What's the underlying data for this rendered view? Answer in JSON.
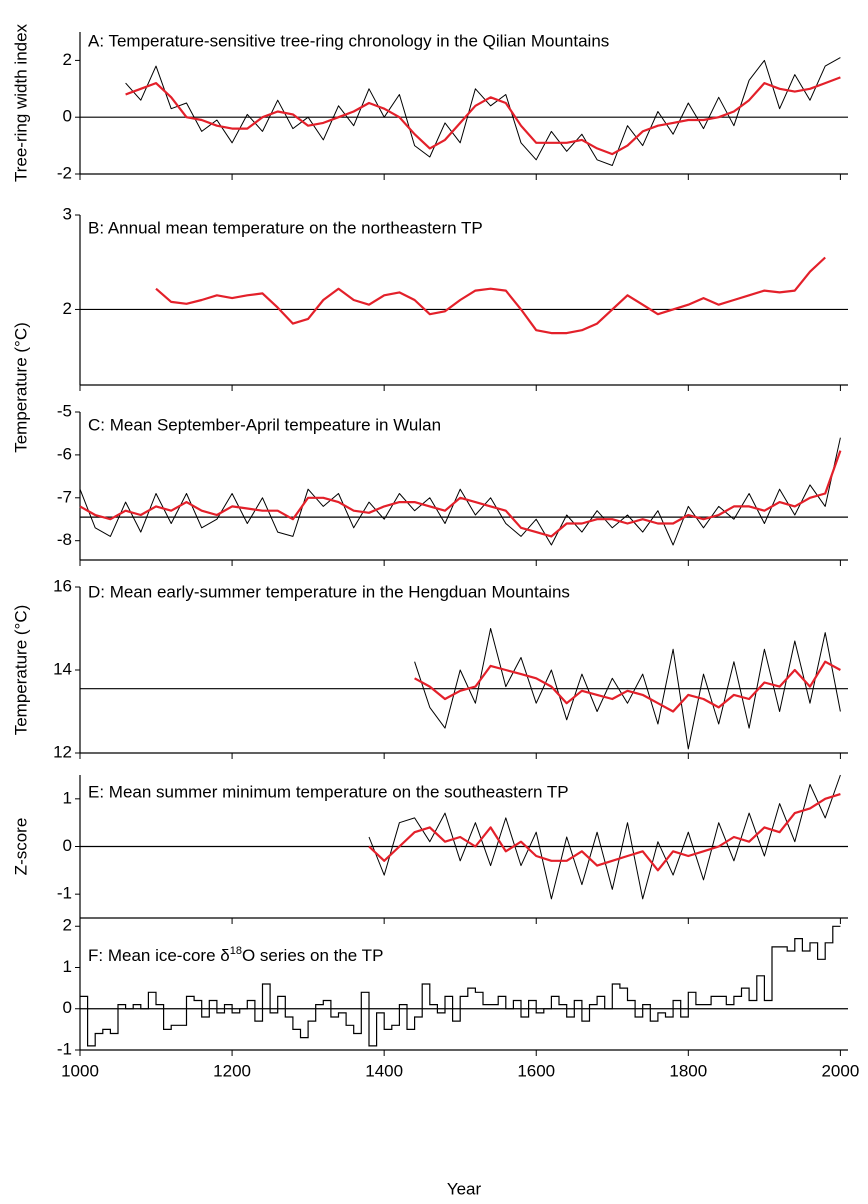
{
  "chart_data": [
    {
      "type": "line",
      "title": "A: Temperature-sensitive tree-ring chronology in the Qilian Mountains",
      "y_label": "Tree-ring width index",
      "x": [
        1060,
        1080,
        1100,
        1120,
        1140,
        1160,
        1180,
        1200,
        1220,
        1240,
        1260,
        1280,
        1300,
        1320,
        1340,
        1360,
        1380,
        1400,
        1420,
        1440,
        1460,
        1480,
        1500,
        1520,
        1540,
        1560,
        1580,
        1600,
        1620,
        1640,
        1660,
        1680,
        1700,
        1720,
        1740,
        1760,
        1780,
        1800,
        1820,
        1840,
        1860,
        1880,
        1900,
        1920,
        1940,
        1960,
        1980,
        2000
      ],
      "series": [
        {
          "color": "#000000",
          "values": [
            1.2,
            0.6,
            1.8,
            0.3,
            0.5,
            -0.5,
            -0.1,
            -0.9,
            0.1,
            -0.5,
            0.6,
            -0.4,
            0.0,
            -0.8,
            0.4,
            -0.3,
            1.0,
            0.0,
            0.8,
            -1.0,
            -1.4,
            -0.2,
            -0.9,
            1.0,
            0.4,
            0.8,
            -0.9,
            -1.5,
            -0.5,
            -1.2,
            -0.6,
            -1.5,
            -1.7,
            -0.3,
            -1.0,
            0.2,
            -0.6,
            0.5,
            -0.4,
            0.7,
            -0.3,
            1.3,
            2.0,
            0.3,
            1.5,
            0.6,
            1.8,
            2.1
          ]
        },
        {
          "color": "#e3202a",
          "values": [
            0.8,
            1.0,
            1.2,
            0.7,
            0.0,
            -0.1,
            -0.3,
            -0.4,
            -0.4,
            0.0,
            0.2,
            0.1,
            -0.3,
            -0.2,
            0.0,
            0.2,
            0.5,
            0.3,
            0.0,
            -0.6,
            -1.1,
            -0.8,
            -0.2,
            0.4,
            0.7,
            0.5,
            -0.3,
            -0.9,
            -0.9,
            -0.9,
            -0.8,
            -1.1,
            -1.3,
            -1.0,
            -0.5,
            -0.3,
            -0.2,
            -0.1,
            -0.1,
            0.0,
            0.2,
            0.6,
            1.2,
            1.0,
            0.9,
            1.0,
            1.2,
            1.4
          ]
        }
      ],
      "hline": 0,
      "xlim": [
        1000,
        2010
      ],
      "ylim": [
        -2,
        3
      ],
      "yticks": [
        -2,
        0,
        2
      ]
    },
    {
      "type": "line",
      "title": "B: Annual mean temperature on the northeastern TP",
      "y_label": "Temperature (°C)",
      "x": [
        1100,
        1120,
        1140,
        1160,
        1180,
        1200,
        1220,
        1240,
        1260,
        1280,
        1300,
        1320,
        1340,
        1360,
        1380,
        1400,
        1420,
        1440,
        1460,
        1480,
        1500,
        1520,
        1540,
        1560,
        1580,
        1600,
        1620,
        1640,
        1660,
        1680,
        1700,
        1720,
        1740,
        1760,
        1780,
        1800,
        1820,
        1840,
        1860,
        1880,
        1900,
        1920,
        1940,
        1960,
        1980
      ],
      "series": [
        {
          "color": "#e3202a",
          "values": [
            2.22,
            2.08,
            2.06,
            2.1,
            2.15,
            2.12,
            2.15,
            2.17,
            2.02,
            1.85,
            1.9,
            2.1,
            2.22,
            2.1,
            2.05,
            2.15,
            2.18,
            2.1,
            1.95,
            1.98,
            2.1,
            2.2,
            2.22,
            2.2,
            2.0,
            1.78,
            1.75,
            1.75,
            1.78,
            1.85,
            2.0,
            2.15,
            2.05,
            1.95,
            2.0,
            2.05,
            2.12,
            2.05,
            2.1,
            2.15,
            2.2,
            2.18,
            2.2,
            2.4,
            2.55
          ]
        }
      ],
      "hline": 2,
      "xlim": [
        1000,
        2010
      ],
      "ylim": [
        1.2,
        3
      ],
      "yticks": [
        2,
        3
      ]
    },
    {
      "type": "line",
      "title": "C: Mean September-April tempeature in Wulan",
      "x": [
        1000,
        1020,
        1040,
        1060,
        1080,
        1100,
        1120,
        1140,
        1160,
        1180,
        1200,
        1220,
        1240,
        1260,
        1280,
        1300,
        1320,
        1340,
        1360,
        1380,
        1400,
        1420,
        1440,
        1460,
        1480,
        1500,
        1520,
        1540,
        1560,
        1580,
        1600,
        1620,
        1640,
        1660,
        1680,
        1700,
        1720,
        1740,
        1760,
        1780,
        1800,
        1820,
        1840,
        1860,
        1880,
        1900,
        1920,
        1940,
        1960,
        1980,
        2000
      ],
      "series": [
        {
          "color": "#000000",
          "values": [
            -6.8,
            -7.7,
            -7.9,
            -7.1,
            -7.8,
            -6.9,
            -7.6,
            -6.9,
            -7.7,
            -7.5,
            -6.9,
            -7.6,
            -7.0,
            -7.8,
            -7.9,
            -6.8,
            -7.2,
            -6.9,
            -7.7,
            -7.1,
            -7.5,
            -6.9,
            -7.3,
            -7.0,
            -7.6,
            -6.8,
            -7.4,
            -7.0,
            -7.6,
            -7.9,
            -7.5,
            -8.1,
            -7.4,
            -7.8,
            -7.3,
            -7.7,
            -7.4,
            -7.8,
            -7.3,
            -8.1,
            -7.2,
            -7.7,
            -7.2,
            -7.5,
            -6.9,
            -7.6,
            -6.8,
            -7.4,
            -6.7,
            -7.2,
            -5.6
          ]
        },
        {
          "color": "#e3202a",
          "values": [
            -7.2,
            -7.4,
            -7.5,
            -7.3,
            -7.4,
            -7.2,
            -7.3,
            -7.1,
            -7.3,
            -7.4,
            -7.2,
            -7.25,
            -7.3,
            -7.3,
            -7.5,
            -7.0,
            -7.0,
            -7.1,
            -7.3,
            -7.35,
            -7.2,
            -7.1,
            -7.1,
            -7.2,
            -7.3,
            -7.0,
            -7.1,
            -7.2,
            -7.3,
            -7.7,
            -7.8,
            -7.9,
            -7.6,
            -7.6,
            -7.5,
            -7.5,
            -7.6,
            -7.5,
            -7.6,
            -7.6,
            -7.4,
            -7.5,
            -7.4,
            -7.2,
            -7.2,
            -7.3,
            -7.1,
            -7.2,
            -7.0,
            -6.9,
            -5.9
          ]
        }
      ],
      "hline": -7.45,
      "xlim": [
        1000,
        2010
      ],
      "ylim": [
        -8.45,
        -5
      ],
      "yticks": [
        -8,
        -7,
        -6,
        -5
      ]
    },
    {
      "type": "line",
      "title": "D: Mean early-summer temperature in the Hengduan Mountains",
      "y_label": "Temperature (°C)",
      "x": [
        1440,
        1460,
        1480,
        1500,
        1520,
        1540,
        1560,
        1580,
        1600,
        1620,
        1640,
        1660,
        1680,
        1700,
        1720,
        1740,
        1760,
        1780,
        1800,
        1820,
        1840,
        1860,
        1880,
        1900,
        1920,
        1940,
        1960,
        1980,
        2000
      ],
      "series": [
        {
          "color": "#000000",
          "values": [
            14.2,
            13.1,
            12.6,
            14.0,
            13.2,
            15.0,
            13.6,
            14.3,
            13.2,
            14.0,
            12.8,
            13.9,
            13.0,
            13.8,
            13.2,
            13.9,
            12.7,
            14.5,
            12.1,
            13.9,
            12.7,
            14.2,
            12.6,
            14.5,
            13.0,
            14.7,
            13.2,
            14.9,
            13.0
          ]
        },
        {
          "color": "#e3202a",
          "values": [
            13.8,
            13.6,
            13.3,
            13.5,
            13.6,
            14.1,
            14.0,
            13.9,
            13.8,
            13.6,
            13.2,
            13.5,
            13.4,
            13.3,
            13.5,
            13.4,
            13.2,
            13.0,
            13.4,
            13.3,
            13.1,
            13.4,
            13.3,
            13.7,
            13.6,
            14.0,
            13.6,
            14.2,
            14.0
          ]
        }
      ],
      "hline": 13.55,
      "xlim": [
        1000,
        2010
      ],
      "ylim": [
        12,
        16
      ],
      "yticks": [
        12,
        14,
        16
      ]
    },
    {
      "type": "line",
      "title": "E: Mean summer minimum temperature on the southeastern TP",
      "y_label": "Z-score",
      "x": [
        1380,
        1400,
        1420,
        1440,
        1460,
        1480,
        1500,
        1520,
        1540,
        1560,
        1580,
        1600,
        1620,
        1640,
        1660,
        1680,
        1700,
        1720,
        1740,
        1760,
        1780,
        1800,
        1820,
        1840,
        1860,
        1880,
        1900,
        1920,
        1940,
        1960,
        1980,
        2000
      ],
      "series": [
        {
          "color": "#000000",
          "values": [
            0.2,
            -0.6,
            0.5,
            0.6,
            0.1,
            0.7,
            -0.3,
            0.5,
            -0.4,
            0.6,
            -0.4,
            0.3,
            -1.1,
            0.2,
            -0.8,
            0.3,
            -0.9,
            0.5,
            -1.1,
            0.1,
            -0.6,
            0.3,
            -0.7,
            0.5,
            -0.3,
            0.7,
            -0.2,
            0.9,
            0.1,
            1.3,
            0.6,
            1.5
          ]
        },
        {
          "color": "#e3202a",
          "values": [
            0.0,
            -0.3,
            0.0,
            0.3,
            0.4,
            0.1,
            0.2,
            0.0,
            0.4,
            -0.1,
            0.1,
            -0.2,
            -0.3,
            -0.3,
            -0.1,
            -0.4,
            -0.3,
            -0.2,
            -0.1,
            -0.5,
            -0.1,
            -0.2,
            -0.1,
            0.0,
            0.2,
            0.1,
            0.4,
            0.3,
            0.7,
            0.8,
            1.0,
            1.1
          ]
        }
      ],
      "hline": 0,
      "xlim": [
        1000,
        2010
      ],
      "ylim": [
        -1.5,
        1.5
      ],
      "yticks": [
        -1,
        0,
        1
      ]
    },
    {
      "type": "step",
      "title": [
        "F: Mean ice-core δ",
        "18",
        "O series on the TP"
      ],
      "x_label": "Year",
      "x": [
        1000,
        1010,
        1020,
        1030,
        1040,
        1050,
        1060,
        1070,
        1080,
        1090,
        1100,
        1110,
        1120,
        1130,
        1140,
        1150,
        1160,
        1170,
        1180,
        1190,
        1200,
        1210,
        1220,
        1230,
        1240,
        1250,
        1260,
        1270,
        1280,
        1290,
        1300,
        1310,
        1320,
        1330,
        1340,
        1350,
        1360,
        1370,
        1380,
        1390,
        1400,
        1410,
        1420,
        1430,
        1440,
        1450,
        1460,
        1470,
        1480,
        1490,
        1500,
        1510,
        1520,
        1530,
        1540,
        1550,
        1560,
        1570,
        1580,
        1590,
        1600,
        1610,
        1620,
        1630,
        1640,
        1650,
        1660,
        1670,
        1680,
        1690,
        1700,
        1710,
        1720,
        1730,
        1740,
        1750,
        1760,
        1770,
        1780,
        1790,
        1800,
        1810,
        1820,
        1830,
        1840,
        1850,
        1860,
        1870,
        1880,
        1890,
        1900,
        1910,
        1920,
        1930,
        1940,
        1950,
        1960,
        1970,
        1980,
        1990,
        2000
      ],
      "series": [
        {
          "color": "#000000",
          "values": [
            0.3,
            -0.9,
            -0.6,
            -0.5,
            -0.6,
            0.1,
            0.0,
            0.1,
            0.0,
            0.4,
            0.1,
            -0.5,
            -0.4,
            -0.4,
            0.3,
            0.2,
            -0.2,
            0.2,
            -0.1,
            0.1,
            -0.1,
            0.0,
            0.2,
            -0.3,
            0.6,
            -0.1,
            0.3,
            -0.2,
            -0.5,
            -0.7,
            -0.3,
            0.1,
            0.2,
            -0.2,
            -0.1,
            -0.4,
            -0.6,
            0.4,
            -0.9,
            -0.1,
            -0.5,
            -0.4,
            0.1,
            -0.5,
            -0.2,
            0.6,
            0.1,
            -0.1,
            0.3,
            -0.3,
            0.3,
            0.5,
            0.4,
            0.1,
            0.1,
            0.3,
            0.0,
            0.2,
            -0.2,
            0.2,
            -0.1,
            0.0,
            0.3,
            0.1,
            -0.2,
            0.2,
            -0.3,
            0.1,
            0.3,
            0.0,
            0.6,
            0.5,
            0.2,
            -0.2,
            0.1,
            -0.3,
            -0.1,
            -0.2,
            0.2,
            -0.2,
            0.4,
            0.1,
            0.1,
            0.3,
            0.3,
            0.1,
            0.3,
            0.5,
            0.2,
            0.8,
            0.2,
            1.5,
            1.5,
            1.4,
            1.7,
            1.4,
            1.6,
            1.2,
            1.6,
            2.0,
            2.0
          ]
        }
      ],
      "hline": 0,
      "xlim": [
        1000,
        2010
      ],
      "ylim": [
        -1,
        2.2
      ],
      "yticks": [
        -1,
        0,
        1,
        2
      ],
      "xticks": [
        1000,
        1200,
        1400,
        1600,
        1800,
        2000
      ]
    }
  ]
}
